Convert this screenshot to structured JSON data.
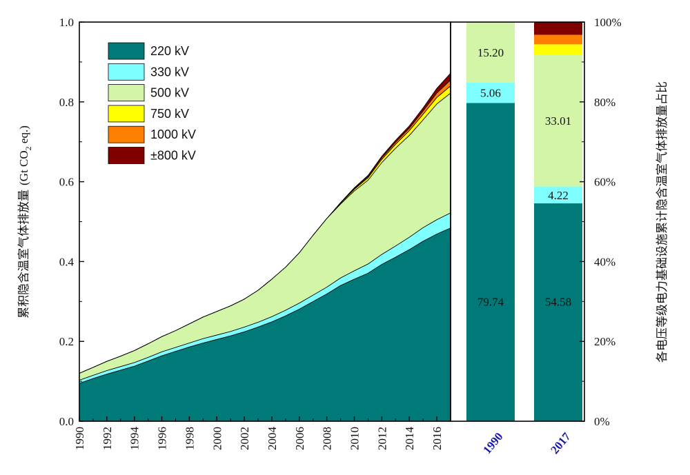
{
  "chart_data": [
    {
      "type": "area",
      "stacked": true,
      "x": [
        1990,
        1991,
        1992,
        1993,
        1994,
        1995,
        1996,
        1997,
        1998,
        1999,
        2000,
        2001,
        2002,
        2003,
        2004,
        2005,
        2006,
        2007,
        2008,
        2009,
        2010,
        2011,
        2012,
        2013,
        2014,
        2015,
        2016,
        2017
      ],
      "series": [
        {
          "name": "220 kV",
          "color": "#007a78",
          "values": [
            0.095,
            0.107,
            0.118,
            0.128,
            0.138,
            0.151,
            0.164,
            0.175,
            0.186,
            0.196,
            0.205,
            0.214,
            0.224,
            0.236,
            0.249,
            0.264,
            0.281,
            0.3,
            0.319,
            0.34,
            0.356,
            0.371,
            0.393,
            0.411,
            0.43,
            0.451,
            0.469,
            0.484
          ]
        },
        {
          "name": "330 kV",
          "color": "#7fffff",
          "values": [
            0.008,
            0.008,
            0.009,
            0.009,
            0.009,
            0.009,
            0.01,
            0.01,
            0.01,
            0.011,
            0.011,
            0.011,
            0.012,
            0.012,
            0.013,
            0.014,
            0.015,
            0.016,
            0.017,
            0.019,
            0.021,
            0.023,
            0.025,
            0.028,
            0.031,
            0.034,
            0.036,
            0.038
          ]
        },
        {
          "name": "500 kV",
          "color": "#d2f5a8",
          "values": [
            0.017,
            0.02,
            0.023,
            0.026,
            0.03,
            0.034,
            0.038,
            0.042,
            0.048,
            0.054,
            0.059,
            0.064,
            0.07,
            0.08,
            0.094,
            0.108,
            0.126,
            0.15,
            0.172,
            0.185,
            0.2,
            0.21,
            0.23,
            0.245,
            0.255,
            0.27,
            0.29,
            0.3
          ]
        },
        {
          "name": "750 kV",
          "color": "#ffff00",
          "values": [
            0,
            0,
            0,
            0,
            0,
            0,
            0,
            0,
            0,
            0,
            0,
            0,
            0,
            0,
            0,
            0,
            0,
            0,
            0,
            0.002,
            0.004,
            0.006,
            0.008,
            0.01,
            0.012,
            0.014,
            0.016,
            0.018
          ]
        },
        {
          "name": "1000 kV",
          "color": "#ff8000",
          "values": [
            0,
            0,
            0,
            0,
            0,
            0,
            0,
            0,
            0,
            0.0,
            0,
            0,
            0,
            0,
            0,
            0,
            0,
            0,
            0,
            0.001,
            0.002,
            0.003,
            0.004,
            0.005,
            0.006,
            0.008,
            0.011,
            0.015
          ]
        },
        {
          "name": "±800 kV",
          "color": "#800000",
          "values": [
            0,
            0,
            0,
            0,
            0,
            0,
            0,
            0,
            0,
            0,
            0,
            0,
            0,
            0,
            0,
            0,
            0,
            0,
            0,
            0.001,
            0.002,
            0.003,
            0.004,
            0.005,
            0.006,
            0.008,
            0.012,
            0.017
          ]
        }
      ],
      "xlabel": "",
      "ylabel": "累积隐含温室气体排放量",
      "ylabel_unit_pre": "(Gt CO",
      "ylabel_unit_sub": "2",
      "ylabel_unit_post": " eq.)",
      "ylim": [
        0,
        1.0
      ],
      "yticks": [
        "0.0",
        "0.2",
        "0.4",
        "0.6",
        "0.8",
        "1.0"
      ],
      "xticks": [
        "1990",
        "1992",
        "1994",
        "1996",
        "1998",
        "2000",
        "2002",
        "2004",
        "2006",
        "2008",
        "2010",
        "2012",
        "2014",
        "2016"
      ],
      "legend": "top-left",
      "grid": false
    },
    {
      "type": "bar",
      "stacked": true,
      "percent": true,
      "categories": [
        "1990",
        "2017"
      ],
      "series": [
        {
          "name": "220 kV",
          "color": "#007a78",
          "values": [
            79.74,
            54.58
          ]
        },
        {
          "name": "330 kV",
          "color": "#7fffff",
          "values": [
            5.06,
            4.22
          ]
        },
        {
          "name": "500 kV",
          "color": "#d2f5a8",
          "values": [
            15.2,
            33.01
          ]
        },
        {
          "name": "750 kV",
          "color": "#ffff00",
          "values": [
            0,
            2.6
          ]
        },
        {
          "name": "1000 kV",
          "color": "#ff8000",
          "values": [
            0,
            2.4
          ]
        },
        {
          "name": "±800 kV",
          "color": "#800000",
          "values": [
            0,
            3.19
          ]
        }
      ],
      "data_labels": [
        [
          "79.74",
          "5.06",
          "15.20",
          "",
          "",
          ""
        ],
        [
          "54.58",
          "4.22",
          "33.01",
          "",
          "",
          ""
        ]
      ],
      "ylabel": "各电压等级电力基础设施累计隐含温室气体排放量占比",
      "ylim": [
        0,
        100
      ],
      "yticks": [
        "0%",
        "20%",
        "40%",
        "60%",
        "80%",
        "100%"
      ]
    }
  ]
}
